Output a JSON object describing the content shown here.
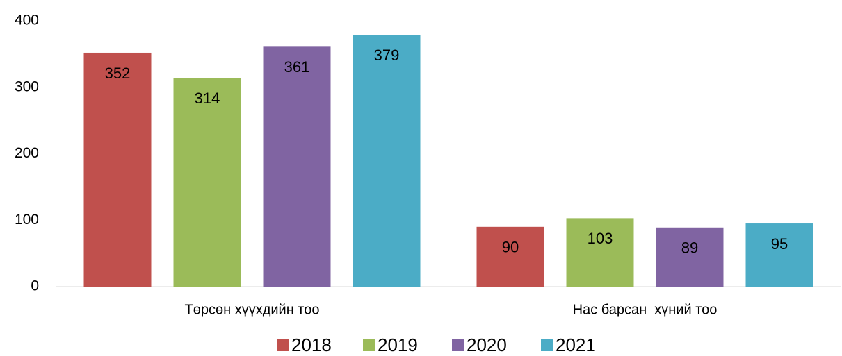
{
  "chart_data": {
    "type": "bar",
    "categories": [
      "Төрсөн хүүхдийн тоо",
      "Нас барсан  хүний тоо"
    ],
    "series": [
      {
        "name": "2018",
        "color": "#c0504d",
        "values": [
          352,
          90
        ]
      },
      {
        "name": "2019",
        "color": "#9bbb59",
        "values": [
          314,
          103
        ]
      },
      {
        "name": "2020",
        "color": "#8064a2",
        "values": [
          361,
          89
        ]
      },
      {
        "name": "2021",
        "color": "#4bacc6",
        "values": [
          379,
          95
        ]
      }
    ],
    "ylim": [
      0,
      400
    ],
    "yticks": [
      0,
      100,
      200,
      300,
      400
    ],
    "grid": false,
    "legend": "bottom"
  }
}
